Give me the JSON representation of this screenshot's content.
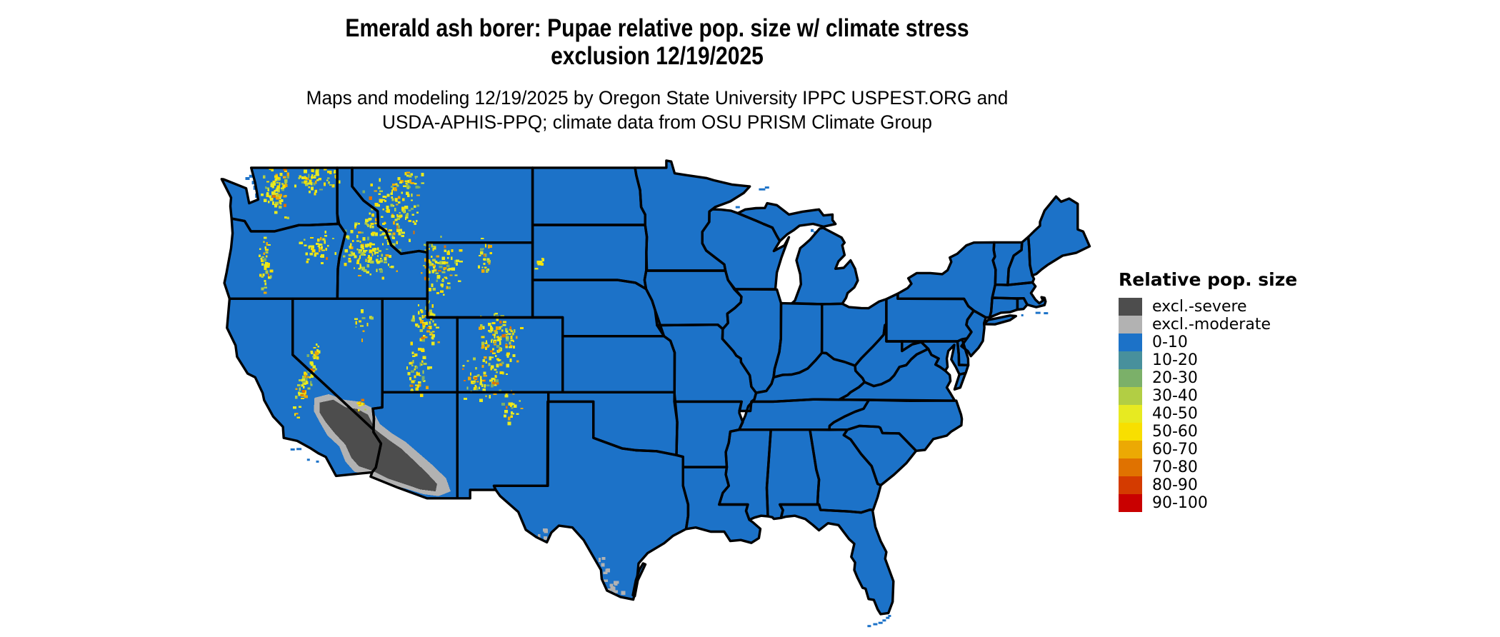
{
  "header": {
    "title_line1": "Emerald ash borer: Pupae relative pop. size w/ climate stress",
    "title_line2": "exclusion 12/19/2025",
    "subtitle_line1": "Maps and modeling 12/19/2025 by Oregon State University IPPC USPEST.ORG and",
    "subtitle_line2": "USDA-APHIS-PPQ; climate data from OSU PRISM Climate Group"
  },
  "legend": {
    "title": "Relative pop. size",
    "items": [
      {
        "label": "excl.-severe",
        "color": "#4D4D4D"
      },
      {
        "label": "excl.-moderate",
        "color": "#B2B2B2"
      },
      {
        "label": "0-10",
        "color": "#1C72C8"
      },
      {
        "label": "10-20",
        "color": "#48909C"
      },
      {
        "label": "20-30",
        "color": "#7BB069"
      },
      {
        "label": "30-40",
        "color": "#B2CE44"
      },
      {
        "label": "40-50",
        "color": "#E7EA21"
      },
      {
        "label": "50-60",
        "color": "#F8DF00"
      },
      {
        "label": "60-70",
        "color": "#ECA904"
      },
      {
        "label": "70-80",
        "color": "#E07200"
      },
      {
        "label": "80-90",
        "color": "#D43B00"
      },
      {
        "label": "90-100",
        "color": "#C90000"
      }
    ]
  },
  "map": {
    "land_color": "#1C72C8",
    "border_color": "#000000",
    "ocean_color": "#FFFFFF",
    "excl_severe_color": "#4D4D4D",
    "excl_moderate_color": "#B2B2B2",
    "speckle_palette": [
      "#E7EA21",
      "#F8DF00",
      "#B2CE44",
      "#7BB069",
      "#ECA904",
      "#E07200"
    ],
    "speckle_weights": [
      0.42,
      0.18,
      0.15,
      0.08,
      0.12,
      0.05
    ]
  }
}
